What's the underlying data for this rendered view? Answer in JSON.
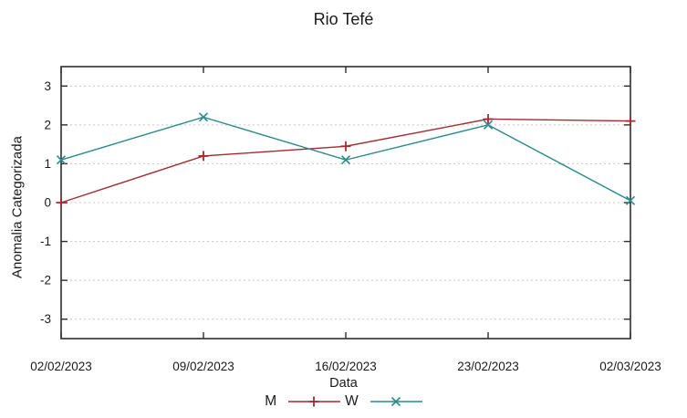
{
  "chart_data": {
    "type": "line",
    "title": "Rio Tefé",
    "xlabel": "Data",
    "ylabel": "Anomalia Categorizada",
    "categories": [
      "02/02/2023",
      "09/02/2023",
      "16/02/2023",
      "23/02/2023",
      "02/03/2023"
    ],
    "series": [
      {
        "name": "M",
        "color": "#a52a2e",
        "marker": "plus",
        "values": [
          0.0,
          1.2,
          1.45,
          2.15,
          2.1
        ]
      },
      {
        "name": "W",
        "color": "#2a8b8a",
        "marker": "cross",
        "values": [
          1.1,
          2.2,
          1.1,
          2.0,
          0.05
        ]
      }
    ],
    "ylim": [
      -3.5,
      3.5
    ],
    "yticks": [
      3,
      2,
      1,
      0,
      -1,
      -2,
      -3
    ],
    "grid": {
      "horizontal": true,
      "style": "dashed",
      "color": "#c8c8c8"
    },
    "legend_position": "bottom-center",
    "axis_color": "#2e2e2e",
    "text_color": "#1a1a1a"
  }
}
